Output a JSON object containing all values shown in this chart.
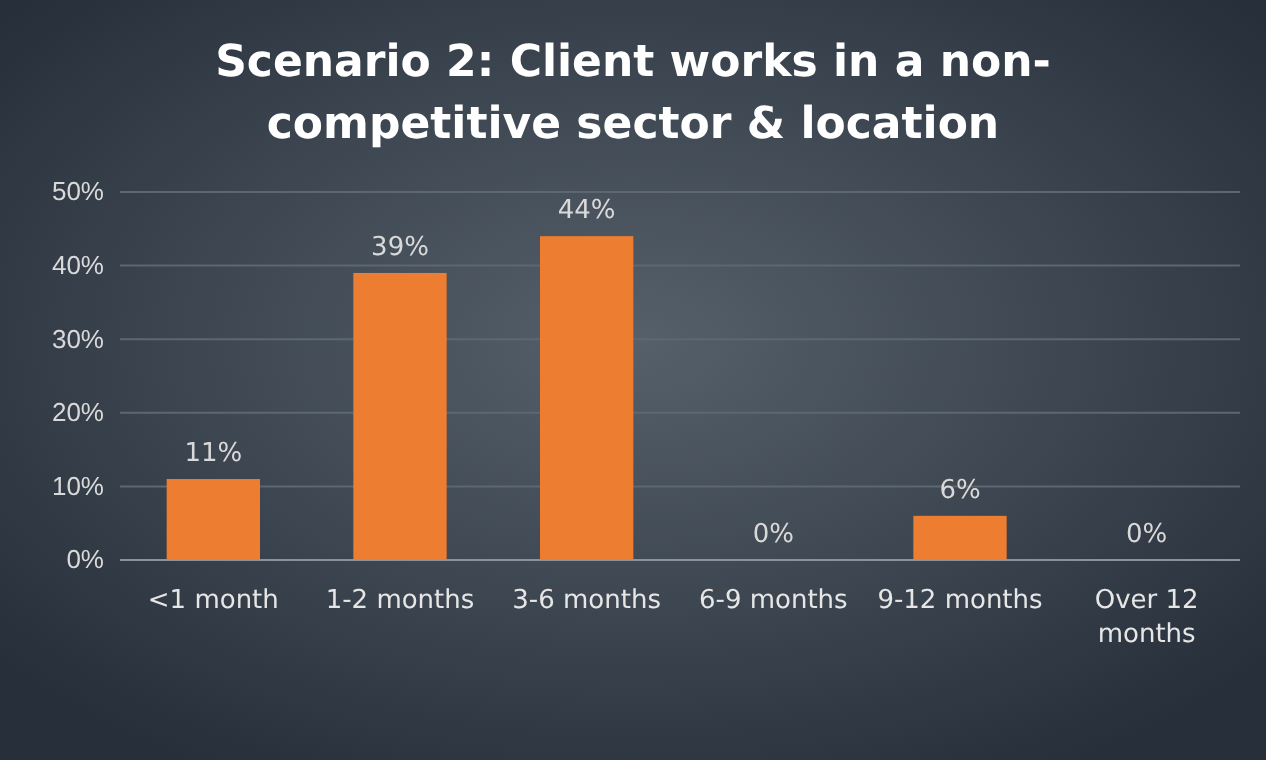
{
  "chart_data": {
    "type": "bar",
    "title": "Scenario 2: Client works in a non-competitive sector & location",
    "categories": [
      "<1 month",
      "1-2 months",
      "3-6 months",
      "6-9 months",
      "9-12 months",
      "Over 12 months"
    ],
    "values": [
      11,
      39,
      44,
      0,
      6,
      0
    ],
    "value_labels": [
      "11%",
      "39%",
      "44%",
      "0%",
      "6%",
      "0%"
    ],
    "color": "#ed7d31",
    "ylim": [
      0,
      50
    ],
    "yticks": [
      {
        "value": 0,
        "label": "0%"
      },
      {
        "value": 10,
        "label": "10%"
      },
      {
        "value": 20,
        "label": "20%"
      },
      {
        "value": 30,
        "label": "30%"
      },
      {
        "value": 40,
        "label": "40%"
      },
      {
        "value": 50,
        "label": "50%"
      }
    ],
    "grid": "y"
  }
}
